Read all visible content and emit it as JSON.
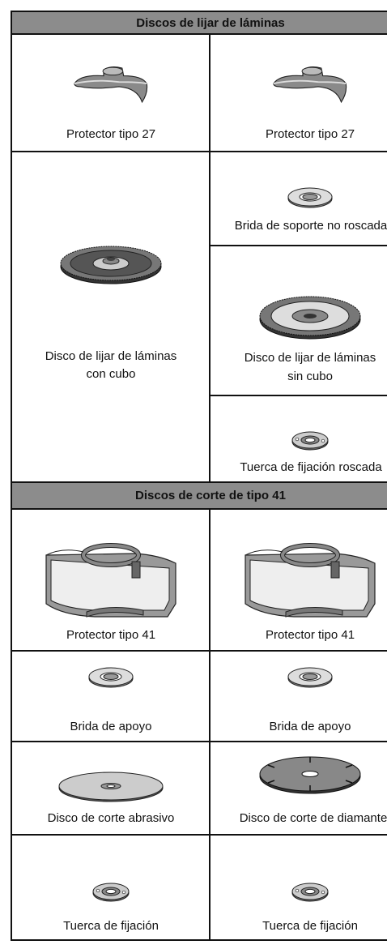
{
  "sections": [
    {
      "title": "Discos de lijar de láminas",
      "guards": [
        "Protector tipo 27",
        "Protector tipo 27"
      ],
      "left_item": [
        "Disco de lijar de láminas",
        "con cubo"
      ],
      "right_items": [
        [
          "Brida de soporte no roscada"
        ],
        [
          "Disco de lijar de láminas",
          "sin cubo"
        ],
        [
          "Tuerca de fijación roscada"
        ]
      ]
    },
    {
      "title": "Discos de corte de tipo 41",
      "rows": [
        [
          "Protector tipo 41",
          "Protector tipo 41"
        ],
        [
          "Brida de apoyo",
          "Brida de apoyo"
        ],
        [
          "Disco de corte abrasivo",
          "Disco de corte de diamante"
        ],
        [
          "Tuerca de fijación",
          "Tuerca de fijación"
        ]
      ]
    }
  ]
}
